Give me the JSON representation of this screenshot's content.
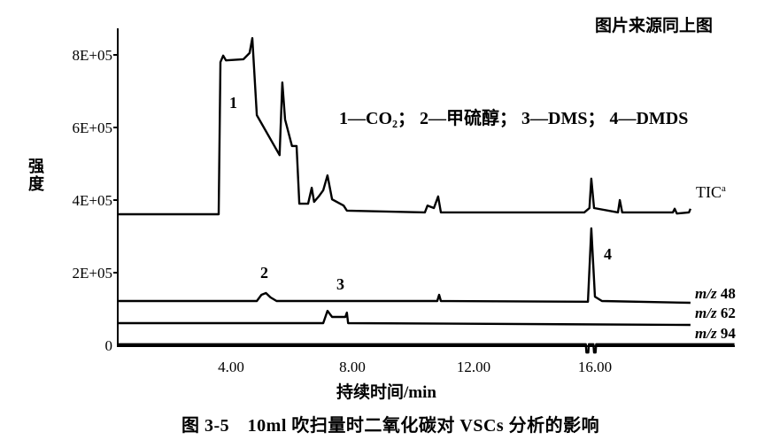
{
  "source_note": "图片来源同上图",
  "caption": "图 3-5　10ml 吹扫量时二氧化碳对 VSCs 分析的影响",
  "legend_text": "1—CO₂； 2—甲硫醇； 3—DMS； 4—DMDS",
  "chart_data": {
    "type": "line",
    "title": "",
    "xlabel": "持续时间/min",
    "ylabel": "强度",
    "xlim": [
      0.26,
      20.6
    ],
    "ylim": [
      0,
      860000
    ],
    "x_ticks": [
      "4.00",
      "8.00",
      "12.00",
      "16.00"
    ],
    "x_tick_values": [
      4,
      8,
      12,
      16
    ],
    "y_ticks": [
      "0",
      "2E+05",
      "4E+05",
      "6E+05",
      "8E+05"
    ],
    "y_tick_values": [
      0,
      200000,
      400000,
      600000,
      800000
    ],
    "grid": false,
    "line_color": "#000000",
    "peak_labels": [
      {
        "label": "1",
        "t": 4.1,
        "y": 660000
      },
      {
        "label": "2",
        "t": 5.15,
        "y": 190000
      },
      {
        "label": "3",
        "t": 7.65,
        "y": 160000
      },
      {
        "label": "4",
        "t": 16.45,
        "y": 250000
      }
    ],
    "series": [
      {
        "name": "TIC",
        "superscript": "a",
        "points": [
          [
            0.26,
            361000
          ],
          [
            3.59,
            361000
          ],
          [
            3.65,
            780000
          ],
          [
            3.74,
            798000
          ],
          [
            3.83,
            785000
          ],
          [
            4.41,
            788000
          ],
          [
            4.61,
            805000
          ],
          [
            4.7,
            846000
          ],
          [
            4.85,
            634000
          ],
          [
            5.6,
            524000
          ],
          [
            5.69,
            724000
          ],
          [
            5.78,
            622000
          ],
          [
            6.01,
            549000
          ],
          [
            6.16,
            549000
          ],
          [
            6.25,
            390000
          ],
          [
            6.54,
            390000
          ],
          [
            6.66,
            434000
          ],
          [
            6.74,
            395000
          ],
          [
            6.89,
            410000
          ],
          [
            7.04,
            427000
          ],
          [
            7.18,
            468000
          ],
          [
            7.33,
            402000
          ],
          [
            7.71,
            385000
          ],
          [
            7.82,
            371000
          ],
          [
            10.39,
            366000
          ],
          [
            10.48,
            385000
          ],
          [
            10.69,
            378000
          ],
          [
            10.83,
            410000
          ],
          [
            10.92,
            366000
          ],
          [
            15.65,
            366000
          ],
          [
            15.82,
            378000
          ],
          [
            15.88,
            459000
          ],
          [
            15.97,
            378000
          ],
          [
            16.76,
            366000
          ],
          [
            16.82,
            400000
          ],
          [
            16.9,
            366000
          ],
          [
            18.57,
            366000
          ],
          [
            18.63,
            376000
          ],
          [
            18.7,
            363000
          ],
          [
            19.1,
            366000
          ],
          [
            19.15,
            376000
          ]
        ]
      },
      {
        "name": "m/z 48",
        "mz_label": "m/z",
        "mz_value": "48",
        "points": [
          [
            0.26,
            122000
          ],
          [
            4.85,
            122000
          ],
          [
            5.0,
            139000
          ],
          [
            5.15,
            144000
          ],
          [
            5.3,
            132000
          ],
          [
            5.5,
            122000
          ],
          [
            10.8,
            122000
          ],
          [
            10.86,
            139000
          ],
          [
            10.92,
            122000
          ],
          [
            15.77,
            120000
          ],
          [
            15.88,
            322000
          ],
          [
            16.0,
            134000
          ],
          [
            16.23,
            122000
          ],
          [
            19.15,
            117000
          ]
        ]
      },
      {
        "name": "m/z 62",
        "mz_label": "m/z",
        "mz_value": "62",
        "points": [
          [
            0.26,
            61000
          ],
          [
            7.04,
            61000
          ],
          [
            7.18,
            95000
          ],
          [
            7.33,
            78000
          ],
          [
            7.77,
            78000
          ],
          [
            7.82,
            90000
          ],
          [
            7.86,
            61000
          ],
          [
            19.15,
            56000
          ]
        ]
      },
      {
        "name": "m/z 94",
        "mz_label": "m/z",
        "mz_value": "94",
        "points": [
          [
            0.26,
            3000
          ],
          [
            15.7,
            3000
          ],
          [
            15.72,
            -20000
          ],
          [
            15.78,
            -20000
          ],
          [
            15.8,
            3000
          ],
          [
            15.95,
            3000
          ],
          [
            15.97,
            -20000
          ],
          [
            16.02,
            -20000
          ],
          [
            16.04,
            3000
          ],
          [
            20.6,
            3000
          ]
        ]
      }
    ]
  }
}
